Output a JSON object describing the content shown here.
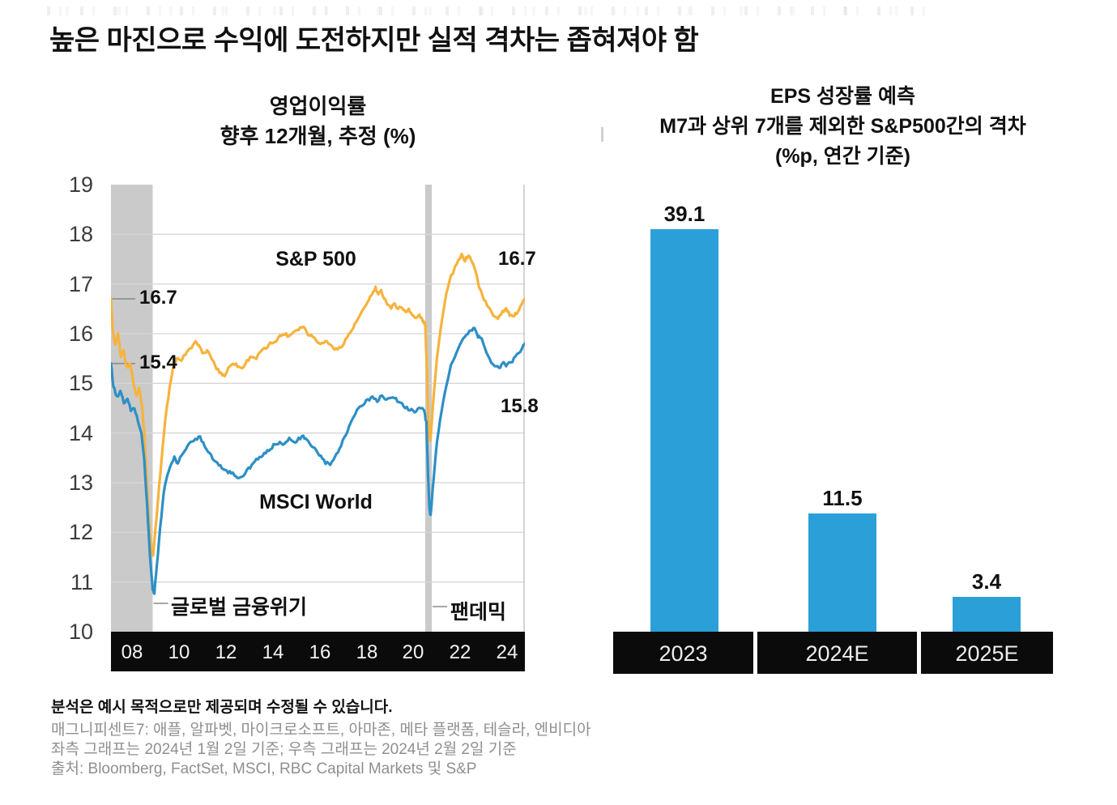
{
  "page": {
    "title": "높은 마진으로 수익에 도전하지만 실적 격차는 좁혀져야 함"
  },
  "left_chart": {
    "title_line1": "영업이익률",
    "title_line2": "향후 12개월, 추정 (%)"
  },
  "right_chart": {
    "title_line1": "EPS 성장률 예측",
    "title_line2": "M7과 상위 7개를 제외한 S&P500간의 격차",
    "title_line3": "(%p, 연간 기준)"
  },
  "footnotes": {
    "disclaimer": "분석은 예시 목적으로만 제공되며 수정될 수 있습니다.",
    "magnificent7": "매그니피센트7: 애플, 알파벳, 마이크로소프트, 아마존, 메타 플랫폼, 테슬라, 엔비디아",
    "as_of": "좌측 그래프는 2024년 1월 2일 기준; 우측 그래프는 2024년 2월 2일 기준",
    "source": "출처: Bloomberg, FactSet, MSCI, RBC Capital Markets 및 S&P"
  },
  "chart_data": [
    {
      "type": "line",
      "title": "영업이익률 향후 12개월, 추정 (%)",
      "ylim": [
        10,
        19
      ],
      "xlim": [
        2007.1,
        2024.75
      ],
      "grid": true,
      "y_ticks": [
        19,
        18,
        17,
        16,
        15,
        14,
        13,
        12,
        11,
        10
      ],
      "y_gridlines": [
        18,
        17,
        16,
        15,
        14,
        13,
        12,
        11
      ],
      "x_ticks": [
        {
          "label": "08",
          "year": 2008
        },
        {
          "label": "10",
          "year": 2010
        },
        {
          "label": "12",
          "year": 2012
        },
        {
          "label": "14",
          "year": 2014
        },
        {
          "label": "16",
          "year": 2016
        },
        {
          "label": "18",
          "year": 2018
        },
        {
          "label": "20",
          "year": 2020
        },
        {
          "label": "22",
          "year": 2022
        },
        {
          "label": "24",
          "year": 2024
        }
      ],
      "shaded_regions": [
        {
          "label": "글로벌 금융위기",
          "from": 2007.1,
          "to": 2008.88
        },
        {
          "label": "팬데믹",
          "from": 2020.5,
          "to": 2020.78
        }
      ],
      "annotations": {
        "start": {
          "sp": 16.7,
          "msci": 15.4
        },
        "end": {
          "sp": 16.7,
          "msci": 15.8
        }
      },
      "colors": {
        "shade": "#cacaca",
        "grid": "#d6d6d6",
        "border": "#c9c9c9"
      },
      "series": [
        {
          "name": "S&P 500",
          "color": "#f6b33c",
          "points": [
            [
              2007.1,
              16.7
            ],
            [
              2007.18,
              16.05
            ],
            [
              2007.28,
              15.75
            ],
            [
              2007.4,
              15.98
            ],
            [
              2007.52,
              15.55
            ],
            [
              2007.64,
              15.65
            ],
            [
              2007.78,
              15.3
            ],
            [
              2007.92,
              15.42
            ],
            [
              2008.06,
              15.0
            ],
            [
              2008.18,
              14.75
            ],
            [
              2008.3,
              14.92
            ],
            [
              2008.42,
              14.55
            ],
            [
              2008.52,
              14.0
            ],
            [
              2008.62,
              13.1
            ],
            [
              2008.72,
              12.2
            ],
            [
              2008.82,
              11.6
            ],
            [
              2008.9,
              11.55
            ],
            [
              2009.0,
              12.1
            ],
            [
              2009.15,
              12.9
            ],
            [
              2009.3,
              13.7
            ],
            [
              2009.45,
              14.4
            ],
            [
              2009.6,
              14.9
            ],
            [
              2009.75,
              15.3
            ],
            [
              2009.9,
              15.5
            ],
            [
              2010.05,
              15.45
            ],
            [
              2010.2,
              15.55
            ],
            [
              2010.4,
              15.65
            ],
            [
              2010.6,
              15.75
            ],
            [
              2010.75,
              15.85
            ],
            [
              2010.9,
              15.7
            ],
            [
              2011.05,
              15.6
            ],
            [
              2011.2,
              15.65
            ],
            [
              2011.4,
              15.5
            ],
            [
              2011.6,
              15.3
            ],
            [
              2011.8,
              15.2
            ],
            [
              2011.95,
              15.15
            ],
            [
              2012.1,
              15.3
            ],
            [
              2012.3,
              15.42
            ],
            [
              2012.5,
              15.35
            ],
            [
              2012.7,
              15.3
            ],
            [
              2012.9,
              15.45
            ],
            [
              2013.1,
              15.55
            ],
            [
              2013.3,
              15.5
            ],
            [
              2013.5,
              15.65
            ],
            [
              2013.7,
              15.7
            ],
            [
              2013.9,
              15.8
            ],
            [
              2014.1,
              15.85
            ],
            [
              2014.3,
              15.95
            ],
            [
              2014.5,
              16.0
            ],
            [
              2014.7,
              15.95
            ],
            [
              2014.9,
              16.05
            ],
            [
              2015.1,
              16.1
            ],
            [
              2015.3,
              16.15
            ],
            [
              2015.5,
              16.0
            ],
            [
              2015.7,
              15.95
            ],
            [
              2015.9,
              15.85
            ],
            [
              2016.1,
              15.8
            ],
            [
              2016.3,
              15.85
            ],
            [
              2016.5,
              15.75
            ],
            [
              2016.7,
              15.68
            ],
            [
              2016.9,
              15.72
            ],
            [
              2017.1,
              15.88
            ],
            [
              2017.3,
              16.02
            ],
            [
              2017.5,
              16.18
            ],
            [
              2017.7,
              16.35
            ],
            [
              2017.9,
              16.5
            ],
            [
              2018.1,
              16.7
            ],
            [
              2018.25,
              16.8
            ],
            [
              2018.38,
              16.92
            ],
            [
              2018.5,
              16.78
            ],
            [
              2018.62,
              16.86
            ],
            [
              2018.75,
              16.72
            ],
            [
              2018.9,
              16.6
            ],
            [
              2019.05,
              16.52
            ],
            [
              2019.2,
              16.6
            ],
            [
              2019.35,
              16.5
            ],
            [
              2019.5,
              16.55
            ],
            [
              2019.65,
              16.42
            ],
            [
              2019.8,
              16.5
            ],
            [
              2019.95,
              16.38
            ],
            [
              2020.1,
              16.3
            ],
            [
              2020.25,
              16.38
            ],
            [
              2020.4,
              16.25
            ],
            [
              2020.5,
              16.2
            ],
            [
              2020.57,
              15.3
            ],
            [
              2020.66,
              13.95
            ],
            [
              2020.72,
              13.85
            ],
            [
              2020.85,
              14.7
            ],
            [
              2021.0,
              15.5
            ],
            [
              2021.2,
              16.25
            ],
            [
              2021.4,
              16.8
            ],
            [
              2021.6,
              17.15
            ],
            [
              2021.85,
              17.4
            ],
            [
              2022.05,
              17.58
            ],
            [
              2022.2,
              17.48
            ],
            [
              2022.35,
              17.58
            ],
            [
              2022.5,
              17.45
            ],
            [
              2022.65,
              17.25
            ],
            [
              2022.8,
              16.95
            ],
            [
              2023.0,
              16.7
            ],
            [
              2023.2,
              16.52
            ],
            [
              2023.4,
              16.38
            ],
            [
              2023.6,
              16.32
            ],
            [
              2023.8,
              16.45
            ],
            [
              2023.95,
              16.5
            ],
            [
              2024.1,
              16.38
            ],
            [
              2024.25,
              16.32
            ],
            [
              2024.4,
              16.42
            ],
            [
              2024.55,
              16.55
            ],
            [
              2024.75,
              16.7
            ]
          ]
        },
        {
          "name": "MSCI World",
          "color": "#2e8fc5",
          "points": [
            [
              2007.1,
              15.4
            ],
            [
              2007.2,
              14.95
            ],
            [
              2007.35,
              14.72
            ],
            [
              2007.5,
              14.85
            ],
            [
              2007.65,
              14.6
            ],
            [
              2007.8,
              14.68
            ],
            [
              2007.95,
              14.45
            ],
            [
              2008.1,
              14.5
            ],
            [
              2008.25,
              14.25
            ],
            [
              2008.4,
              14.0
            ],
            [
              2008.52,
              13.45
            ],
            [
              2008.64,
              12.55
            ],
            [
              2008.76,
              11.55
            ],
            [
              2008.88,
              10.85
            ],
            [
              2008.95,
              10.78
            ],
            [
              2009.05,
              11.3
            ],
            [
              2009.2,
              12.1
            ],
            [
              2009.35,
              12.8
            ],
            [
              2009.5,
              13.15
            ],
            [
              2009.65,
              13.35
            ],
            [
              2009.8,
              13.5
            ],
            [
              2009.95,
              13.38
            ],
            [
              2010.1,
              13.55
            ],
            [
              2010.3,
              13.7
            ],
            [
              2010.5,
              13.8
            ],
            [
              2010.7,
              13.88
            ],
            [
              2010.9,
              13.92
            ],
            [
              2011.1,
              13.75
            ],
            [
              2011.3,
              13.6
            ],
            [
              2011.5,
              13.45
            ],
            [
              2011.7,
              13.35
            ],
            [
              2011.9,
              13.28
            ],
            [
              2012.1,
              13.22
            ],
            [
              2012.3,
              13.18
            ],
            [
              2012.5,
              13.12
            ],
            [
              2012.7,
              13.1
            ],
            [
              2012.9,
              13.25
            ],
            [
              2013.1,
              13.35
            ],
            [
              2013.3,
              13.45
            ],
            [
              2013.5,
              13.52
            ],
            [
              2013.7,
              13.6
            ],
            [
              2013.9,
              13.68
            ],
            [
              2014.1,
              13.78
            ],
            [
              2014.3,
              13.82
            ],
            [
              2014.5,
              13.78
            ],
            [
              2014.7,
              13.88
            ],
            [
              2014.9,
              13.8
            ],
            [
              2015.1,
              13.88
            ],
            [
              2015.3,
              13.92
            ],
            [
              2015.45,
              13.85
            ],
            [
              2015.65,
              13.75
            ],
            [
              2015.85,
              13.65
            ],
            [
              2016.05,
              13.52
            ],
            [
              2016.25,
              13.4
            ],
            [
              2016.45,
              13.36
            ],
            [
              2016.65,
              13.5
            ],
            [
              2016.85,
              13.7
            ],
            [
              2017.05,
              13.9
            ],
            [
              2017.25,
              14.12
            ],
            [
              2017.45,
              14.35
            ],
            [
              2017.65,
              14.5
            ],
            [
              2017.85,
              14.58
            ],
            [
              2018.05,
              14.66
            ],
            [
              2018.25,
              14.72
            ],
            [
              2018.45,
              14.64
            ],
            [
              2018.65,
              14.76
            ],
            [
              2018.85,
              14.68
            ],
            [
              2019.05,
              14.72
            ],
            [
              2019.25,
              14.68
            ],
            [
              2019.45,
              14.6
            ],
            [
              2019.65,
              14.52
            ],
            [
              2019.85,
              14.46
            ],
            [
              2020.05,
              14.44
            ],
            [
              2020.25,
              14.5
            ],
            [
              2020.45,
              14.46
            ],
            [
              2020.55,
              14.2
            ],
            [
              2020.62,
              13.2
            ],
            [
              2020.68,
              12.45
            ],
            [
              2020.73,
              12.35
            ],
            [
              2020.85,
              13.05
            ],
            [
              2021.0,
              13.8
            ],
            [
              2021.2,
              14.45
            ],
            [
              2021.4,
              14.95
            ],
            [
              2021.6,
              15.35
            ],
            [
              2021.85,
              15.65
            ],
            [
              2022.05,
              15.85
            ],
            [
              2022.25,
              15.95
            ],
            [
              2022.45,
              16.08
            ],
            [
              2022.6,
              16.1
            ],
            [
              2022.75,
              15.95
            ],
            [
              2022.9,
              15.9
            ],
            [
              2023.05,
              15.7
            ],
            [
              2023.25,
              15.48
            ],
            [
              2023.45,
              15.35
            ],
            [
              2023.65,
              15.3
            ],
            [
              2023.8,
              15.42
            ],
            [
              2023.95,
              15.36
            ],
            [
              2024.15,
              15.42
            ],
            [
              2024.35,
              15.52
            ],
            [
              2024.55,
              15.65
            ],
            [
              2024.75,
              15.8
            ]
          ]
        }
      ]
    },
    {
      "type": "bar",
      "title": "EPS 성장률 예측 — M7과 상위 7개를 제외한 S&P500간의 격차 (%p, 연간 기준)",
      "categories": [
        "2023",
        "2024E",
        "2025E"
      ],
      "values": [
        39.1,
        11.5,
        3.4
      ],
      "bar_color": "#2ba0d8",
      "ylim": [
        0,
        40
      ],
      "grid": false,
      "legend": "none"
    }
  ]
}
